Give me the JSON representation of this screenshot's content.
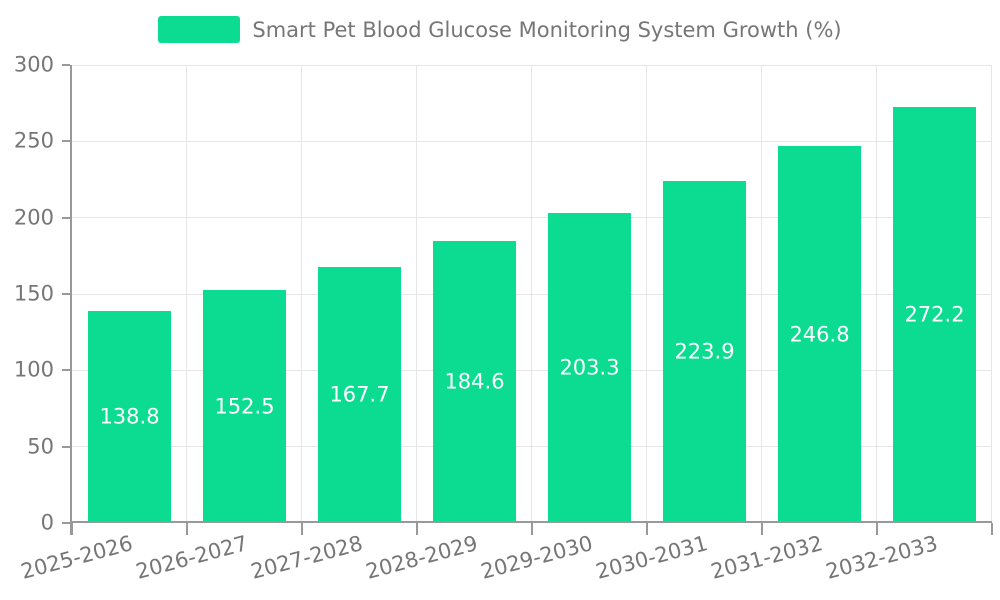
{
  "chart_data": {
    "type": "bar",
    "title": "",
    "categories": [
      "2025-2026",
      "2026-2027",
      "2027-2028",
      "2028-2029",
      "2029-2030",
      "2030-2031",
      "2031-2032",
      "2032-2033"
    ],
    "series": [
      {
        "name": "Smart Pet Blood Glucose Monitoring System Growth (%)",
        "values": [
          138.8,
          152.5,
          167.7,
          184.6,
          203.3,
          223.9,
          246.8,
          272.2
        ]
      }
    ],
    "xlabel": "",
    "ylabel": "",
    "ylim": [
      0,
      300
    ],
    "yticks": [
      0,
      50,
      100,
      150,
      200,
      250,
      300
    ],
    "grid": true,
    "legend_position": "top",
    "bar_label_decimals": 1,
    "colors": {
      "bar": "#0bdc92",
      "grid": "#e6e6e6",
      "axis": "#999999",
      "tick_text": "#767676",
      "value_text": "#ffffff"
    }
  }
}
